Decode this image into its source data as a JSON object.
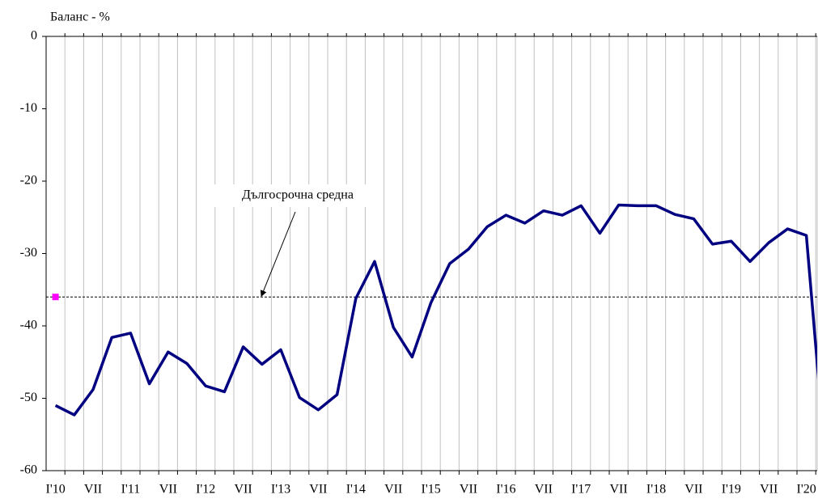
{
  "chart_data": {
    "type": "line",
    "y_axis_label": "Баланс - %",
    "categories": [
      "I'10",
      null,
      "VII",
      null,
      "I'11",
      null,
      "VII",
      null,
      "I'12",
      null,
      "VII",
      null,
      "I'13",
      null,
      "VII",
      null,
      "I'14",
      null,
      "VII",
      null,
      "I'15",
      null,
      "VII",
      null,
      "I'16",
      null,
      "VII",
      null,
      "I'17",
      null,
      "VII",
      null,
      "I'18",
      null,
      "VII",
      null,
      "I'19",
      null,
      "VII",
      null,
      "I'20",
      null
    ],
    "series": [
      {
        "color": "#000080",
        "values": [
          -51,
          -52.3,
          -48.8,
          -41.6,
          -41,
          -48,
          -43.6,
          -45.2,
          -48.3,
          -49.1,
          -42.9,
          -45.3,
          -43.3,
          -49.9,
          -51.6,
          -49.5,
          -36.2,
          -31.1,
          -40.2,
          -44.3,
          -36.8,
          -31.4,
          -29.4,
          -26.3,
          -24.7,
          -25.8,
          -24.1,
          -24.7,
          -23.4,
          -27.2,
          -23.3,
          -23.4,
          -23.4,
          -24.6,
          -25.2,
          -28.7,
          -28.3,
          -31.1,
          -28.5,
          -26.6,
          -27.5,
          -58
        ]
      }
    ],
    "long_term_average": {
      "label": "Дългосрочна средна",
      "value": -36,
      "color": "#ff00ff"
    },
    "ylim": [
      -60,
      0
    ],
    "yticks": [
      -60,
      -50,
      -40,
      -30,
      -20,
      -10,
      0
    ],
    "grid": true
  }
}
